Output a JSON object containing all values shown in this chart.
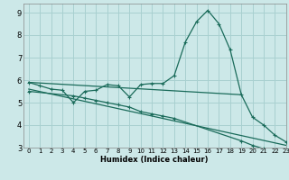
{
  "xlabel": "Humidex (Indice chaleur)",
  "xlim": [
    -0.5,
    23
  ],
  "ylim": [
    3,
    9.4
  ],
  "xticks": [
    0,
    1,
    2,
    3,
    4,
    5,
    6,
    7,
    8,
    9,
    10,
    11,
    12,
    13,
    14,
    15,
    16,
    17,
    18,
    19,
    20,
    21,
    22,
    23
  ],
  "yticks": [
    3,
    4,
    5,
    6,
    7,
    8,
    9
  ],
  "bg_color": "#cce8e8",
  "grid_color": "#a8d0d0",
  "line_color": "#1a6b5a",
  "line1_x": [
    0,
    1,
    2,
    3,
    4,
    5,
    6,
    7,
    8,
    9,
    10,
    11,
    12,
    13,
    14,
    15,
    16,
    17,
    18,
    19,
    20,
    21,
    22,
    23
  ],
  "line1_y": [
    5.9,
    5.75,
    5.6,
    5.55,
    5.0,
    5.5,
    5.55,
    5.8,
    5.75,
    5.25,
    5.8,
    5.85,
    5.85,
    6.2,
    7.7,
    8.6,
    9.1,
    8.5,
    7.35,
    5.35,
    4.35,
    4.0,
    3.55,
    3.25
  ],
  "line2_x": [
    0,
    19
  ],
  "line2_y": [
    5.9,
    5.35
  ],
  "line3_x": [
    0,
    4,
    5,
    6,
    7,
    8,
    9,
    10,
    11,
    12,
    13,
    19,
    20,
    21,
    22,
    23
  ],
  "line3_y": [
    5.5,
    5.3,
    5.2,
    5.1,
    5.0,
    4.9,
    4.8,
    4.6,
    4.5,
    4.4,
    4.3,
    3.3,
    3.1,
    2.95,
    2.85,
    2.75
  ],
  "line4_x": [
    0,
    23
  ],
  "line4_y": [
    5.6,
    3.1
  ]
}
